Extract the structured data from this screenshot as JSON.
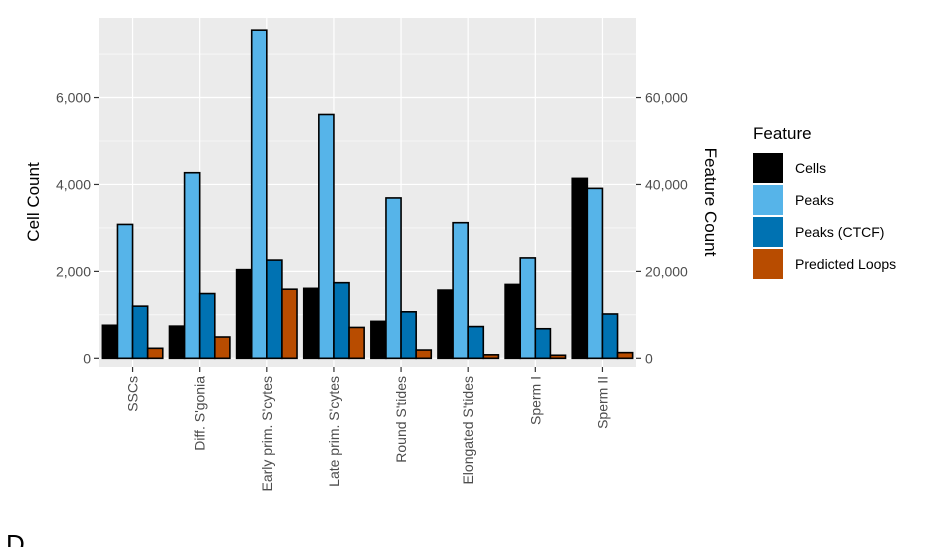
{
  "panel_letter": "D",
  "chart_data": {
    "type": "bar",
    "categories": [
      "SSCs",
      "Diff. S'gonia",
      "Early prim. S'cytes",
      "Late prim. S'cytes",
      "Round S'tides",
      "Elongated S'tides",
      "Sperm I",
      "Sperm II"
    ],
    "series": [
      {
        "name": "Cells",
        "axis": "left",
        "color": "#000000",
        "values": [
          760,
          740,
          2040,
          1610,
          850,
          1570,
          1700,
          4140
        ]
      },
      {
        "name": "Peaks",
        "axis": "right",
        "color": "#56B4E9",
        "values": [
          30800,
          42700,
          75500,
          56100,
          36900,
          31200,
          23100,
          39100
        ]
      },
      {
        "name": "Peaks (CTCF)",
        "axis": "right",
        "color": "#0072B2",
        "values": [
          12000,
          14900,
          22600,
          17400,
          10700,
          7300,
          6800,
          10200
        ]
      },
      {
        "name": "Predicted Loops",
        "axis": "right",
        "color": "#B84C00",
        "values": [
          2300,
          4900,
          15900,
          7100,
          1900,
          800,
          700,
          1300
        ]
      }
    ],
    "ylabel": "Cell Count",
    "y2label": "Feature Count",
    "ylim": [
      -200,
      7830
    ],
    "y2lim": [
      -2000,
      78300
    ],
    "yticks": [
      0,
      2000,
      4000,
      6000
    ],
    "yticklabels": [
      "0",
      "2,000",
      "4,000",
      "6,000"
    ],
    "y2ticks": [
      0,
      20000,
      40000,
      60000
    ],
    "y2ticklabels": [
      "0",
      "20,000",
      "40,000",
      "60,000"
    ],
    "legend_title": "Feature",
    "legend_position": "right",
    "grid": true,
    "panel_background": "#EBEBEB"
  }
}
